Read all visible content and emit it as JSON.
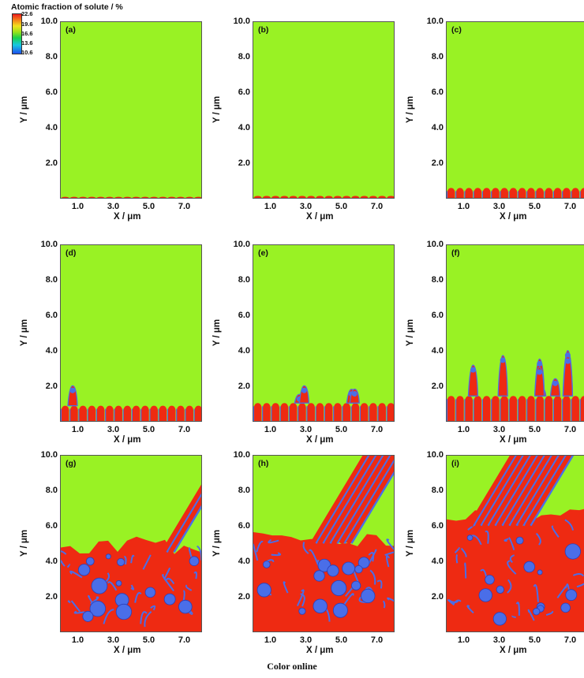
{
  "colorbar": {
    "title": "Atomic fraction of solute / %",
    "ticks": [
      "22.6",
      "19.6",
      "16.6",
      "13.6",
      "10.6"
    ]
  },
  "caption": "Color online",
  "chart_data": [
    {
      "type": "heatmap",
      "panel": "(a)",
      "xlabel": "X / μm",
      "ylabel": "Y / μm",
      "xticks": [
        "1.0",
        "3.0",
        "5.0",
        "7.0"
      ],
      "yticks": [
        "10.0",
        "8.0",
        "6.0",
        "4.0",
        "2.0"
      ],
      "xlim": [
        0,
        8
      ],
      "ylim": [
        0,
        10
      ],
      "front_height": 0.15,
      "cells": 16,
      "colors": {
        "matrix": "#99f224",
        "cell": "#ee2a12",
        "solute": "#4a6ee8"
      }
    },
    {
      "type": "heatmap",
      "panel": "(b)",
      "xlabel": "X / μm",
      "ylabel": "Y / μm",
      "xticks": [
        "1.0",
        "3.0",
        "5.0",
        "7.0"
      ],
      "yticks": [
        "10.0",
        "8.0",
        "6.0",
        "4.0",
        "2.0"
      ],
      "xlim": [
        0,
        8
      ],
      "ylim": [
        0,
        10
      ],
      "front_height": 0.2,
      "cells": 16,
      "colors": {
        "matrix": "#99f224",
        "cell": "#ee2a12",
        "solute": "#4a6ee8"
      }
    },
    {
      "type": "heatmap",
      "panel": "(c)",
      "xlabel": "X / μm",
      "ylabel": "Y / μm",
      "xticks": [
        "1.0",
        "3.0",
        "5.0",
        "7.0"
      ],
      "yticks": [
        "10.0",
        "8.0",
        "6.0",
        "4.0",
        "2.0"
      ],
      "xlim": [
        0,
        8
      ],
      "ylim": [
        0,
        10
      ],
      "front_height": 0.65,
      "cells": 16,
      "colors": {
        "matrix": "#99f224",
        "cell": "#ee2a12",
        "solute": "#4a6ee8"
      }
    },
    {
      "type": "heatmap",
      "panel": "(d)",
      "xlabel": "X / μm",
      "ylabel": "Y / μm",
      "xticks": [
        "1.0",
        "3.0",
        "5.0",
        "7.0"
      ],
      "yticks": [
        "10.0",
        "8.0",
        "6.0",
        "4.0",
        "2.0"
      ],
      "xlim": [
        0,
        8
      ],
      "ylim": [
        0,
        10
      ],
      "front_height": 0.95,
      "cells": 16,
      "colors": {
        "matrix": "#99f224",
        "cell": "#ee2a12",
        "solute": "#4a6ee8"
      }
    },
    {
      "type": "heatmap",
      "panel": "(e)",
      "xlabel": "X / μm",
      "ylabel": "Y / μm",
      "xticks": [
        "1.0",
        "3.0",
        "5.0",
        "7.0"
      ],
      "yticks": [
        "10.0",
        "8.0",
        "6.0",
        "4.0",
        "2.0"
      ],
      "xlim": [
        0,
        8
      ],
      "ylim": [
        0,
        10
      ],
      "front_height": 1.1,
      "cells": 16,
      "colors": {
        "matrix": "#99f224",
        "cell": "#ee2a12",
        "solute": "#4a6ee8"
      }
    },
    {
      "type": "heatmap",
      "panel": "(f)",
      "xlabel": "X / μm",
      "ylabel": "Y / μm",
      "xticks": [
        "1.0",
        "3.0",
        "5.0",
        "7.0"
      ],
      "yticks": [
        "10.0",
        "8.0",
        "6.0",
        "4.0",
        "2.0"
      ],
      "xlim": [
        0,
        8
      ],
      "ylim": [
        0,
        10
      ],
      "front_height": 1.5,
      "cells": 16,
      "colors": {
        "matrix": "#99f224",
        "cell": "#ee2a12",
        "solute": "#4a6ee8"
      }
    },
    {
      "type": "heatmap",
      "panel": "(g)",
      "xlabel": "X / μm",
      "ylabel": "Y / μm",
      "xticks": [
        "1.0",
        "3.0",
        "5.0",
        "7.0"
      ],
      "yticks": [
        "10.0",
        "8.0",
        "6.0",
        "4.0",
        "2.0"
      ],
      "xlim": [
        0,
        8
      ],
      "ylim": [
        0,
        10
      ],
      "front_height": 5.0,
      "cells": 16,
      "colors": {
        "matrix": "#99f224",
        "cell": "#ee2a12",
        "solute": "#4a6ee8"
      }
    },
    {
      "type": "heatmap",
      "panel": "(h)",
      "xlabel": "X / μm",
      "ylabel": "Y / μm",
      "xticks": [
        "1.0",
        "3.0",
        "5.0",
        "7.0"
      ],
      "yticks": [
        "10.0",
        "8.0",
        "6.0",
        "4.0",
        "2.0"
      ],
      "xlim": [
        0,
        8
      ],
      "ylim": [
        0,
        10
      ],
      "front_height": 5.5,
      "cells": 16,
      "colors": {
        "matrix": "#99f224",
        "cell": "#ee2a12",
        "solute": "#4a6ee8"
      }
    },
    {
      "type": "heatmap",
      "panel": "(i)",
      "xlabel": "X / μm",
      "ylabel": "Y / μm",
      "xticks": [
        "1.0",
        "3.0",
        "5.0",
        "7.0"
      ],
      "yticks": [
        "10.0",
        "8.0",
        "6.0",
        "4.0",
        "2.0"
      ],
      "xlim": [
        0,
        8
      ],
      "ylim": [
        0,
        10
      ],
      "front_height": 6.5,
      "cells": 16,
      "colors": {
        "matrix": "#99f224",
        "cell": "#ee2a12",
        "solute": "#4a6ee8"
      }
    }
  ]
}
